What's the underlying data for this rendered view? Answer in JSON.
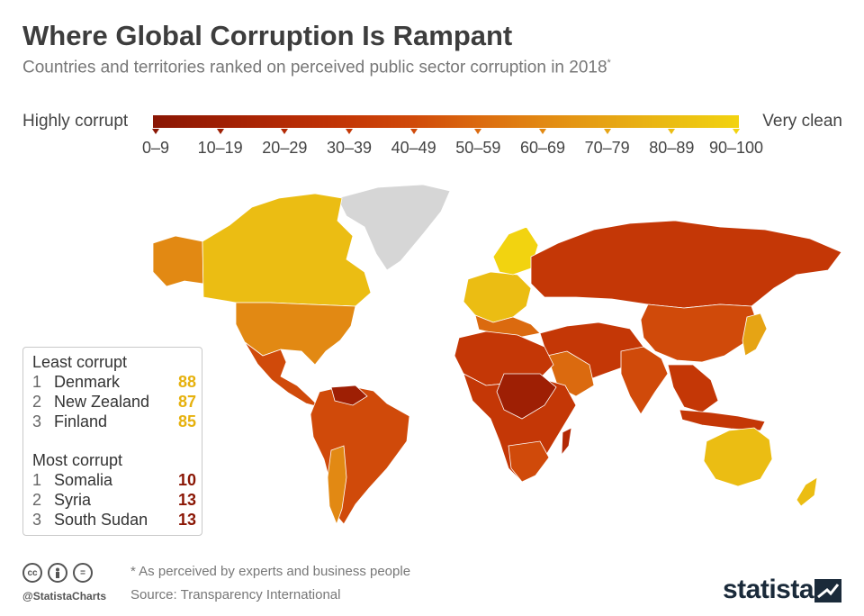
{
  "title": "Where Global Corruption Is Rampant",
  "subtitle": "Countries and territories ranked on perceived public sector corruption in 2018",
  "subtitle_marker": "*",
  "legend": {
    "left_label": "Highly corrupt",
    "right_label": "Very clean",
    "ranges": [
      "0–9",
      "10–19",
      "20–29",
      "30–39",
      "40–49",
      "50–59",
      "60–69",
      "70–79",
      "80–89",
      "90–100"
    ],
    "colors": [
      "#8a1604",
      "#9e1f04",
      "#b32905",
      "#c43706",
      "#d04a0a",
      "#db6a0f",
      "#e28913",
      "#e6a414",
      "#ebbd13",
      "#f2d310"
    ]
  },
  "map_colors": {
    "no_data": "#d6d6d6",
    "usa": "#e28913",
    "canada": "#ebbd13",
    "russia": "#c43706",
    "china": "#d04a0a",
    "australia": "#ebbd13",
    "brazil": "#d04a0a",
    "africa": "#c43706",
    "central_africa": "#9e1f04"
  },
  "rankings": {
    "least_heading": "Least corrupt",
    "least": [
      {
        "rank": "1",
        "name": "Denmark",
        "score": "88"
      },
      {
        "rank": "2",
        "name": "New Zealand",
        "score": "87"
      },
      {
        "rank": "3",
        "name": "Finland",
        "score": "85"
      }
    ],
    "least_color": "#e6b10e",
    "most_heading": "Most corrupt",
    "most": [
      {
        "rank": "1",
        "name": "Somalia",
        "score": "10"
      },
      {
        "rank": "2",
        "name": "Syria",
        "score": "13"
      },
      {
        "rank": "3",
        "name": "South Sudan",
        "score": "13"
      }
    ],
    "most_color": "#8a1604"
  },
  "footer": {
    "handle": "@StatistaCharts",
    "note": "* As perceived by experts and business people",
    "source": "Source: Transparency International",
    "brand": "statista",
    "icons": [
      "cc-icon",
      "person-icon",
      "equals-icon"
    ]
  }
}
